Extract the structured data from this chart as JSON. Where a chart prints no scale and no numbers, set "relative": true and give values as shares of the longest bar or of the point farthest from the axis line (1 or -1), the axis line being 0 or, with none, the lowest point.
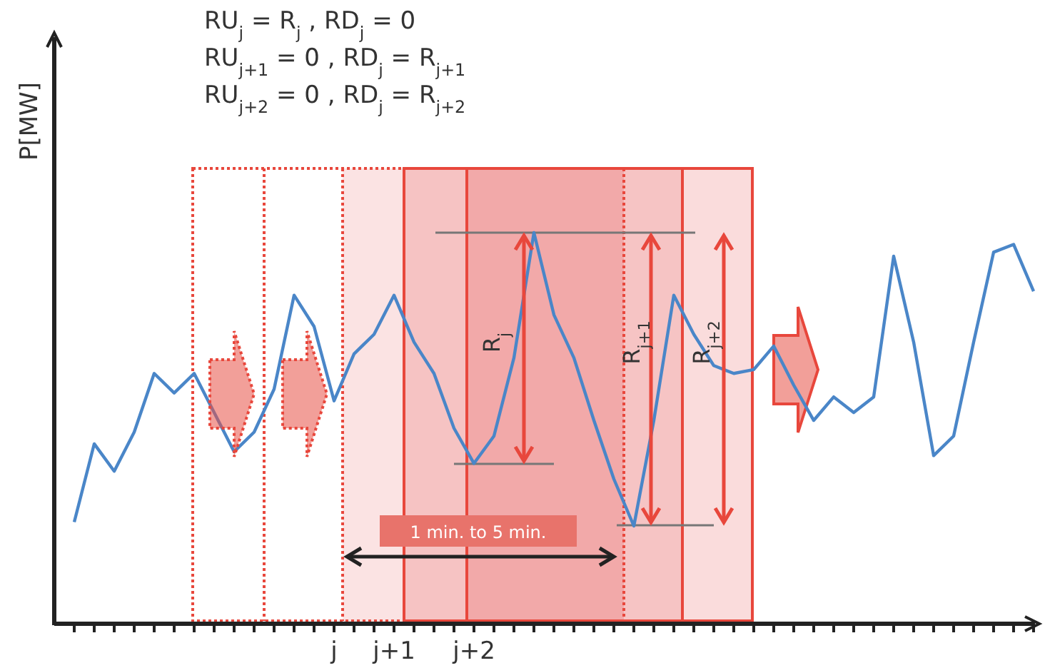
{
  "chart_data": {
    "type": "line",
    "relative": true,
    "ylabel": "P[MW]",
    "categories": [
      null,
      null,
      null,
      null,
      null,
      null,
      null,
      null,
      null,
      null,
      null,
      null,
      null,
      "j",
      null,
      null,
      "j+1",
      null,
      null,
      null,
      "j+2",
      null,
      null,
      null,
      null,
      null,
      null,
      null,
      null,
      null,
      null,
      null,
      null,
      null,
      null,
      null,
      null,
      null,
      null,
      null,
      null,
      null,
      null,
      null,
      null,
      null,
      null,
      null,
      null
    ],
    "series": [
      {
        "color": "#4a86c8",
        "values": [
          0.26,
          0.46,
          0.39,
          0.49,
          0.64,
          0.59,
          0.64,
          0.54,
          0.44,
          0.49,
          0.6,
          0.84,
          0.76,
          0.57,
          0.69,
          0.74,
          0.84,
          0.72,
          0.64,
          0.5,
          0.41,
          0.48,
          0.68,
          1,
          0.79,
          0.68,
          0.52,
          0.37,
          0.25,
          0.52,
          0.84,
          0.74,
          0.66,
          0.64,
          0.65,
          0.71,
          0.61,
          0.52,
          0.58,
          0.54,
          0.58,
          0.94,
          0.72,
          0.43,
          0.48,
          0.72,
          0.95,
          0.97,
          0.85
        ]
      }
    ],
    "legend": false,
    "marker": "none",
    "line_style": "solid",
    "annotations": [
      "RU$_{j}$ = R$_{j}$ , RD$_{j}$ = 0",
      "RU$_{j+1}$ = 0 , RD$_{j}$ = R$_{j+1}$",
      "RU$_{j+2}$ = 0 , RD$_{j}$ = R$_{j+2}$",
      "R$_{j}$",
      "R$_{j+1}$",
      "R$_{j+2}$",
      "1 min. to 5 min."
    ]
  }
}
